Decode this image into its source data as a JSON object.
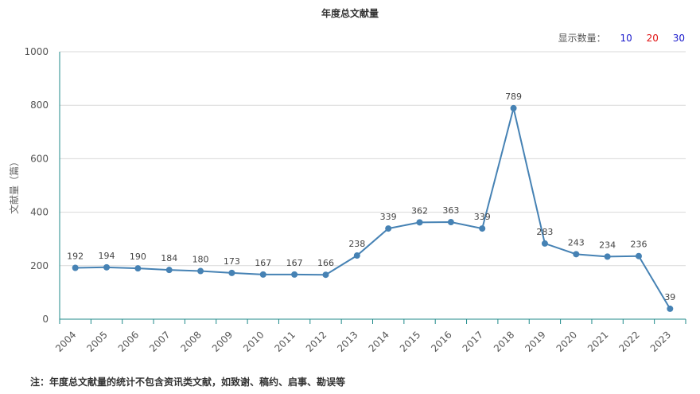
{
  "chart_title": "年度总文献量",
  "display_count": {
    "label": "显示数量：",
    "options": [
      {
        "label": "10",
        "color": "#1a1acc"
      },
      {
        "label": "20",
        "color": "#e01010"
      },
      {
        "label": "30",
        "color": "#1a1acc"
      }
    ]
  },
  "note": "注：年度总文献量的统计不包含资讯类文献，如致谢、稿约、启事、勘误等",
  "chart_data": {
    "type": "line",
    "title": "年度总文献量",
    "xlabel": "",
    "ylabel": "文献量（篇）",
    "ylim": [
      0,
      1000
    ],
    "yticks": [
      0,
      200,
      400,
      600,
      800,
      1000
    ],
    "grid": true,
    "line_color": "#4682b4",
    "categories": [
      "2004",
      "2005",
      "2006",
      "2007",
      "2008",
      "2009",
      "2010",
      "2011",
      "2012",
      "2013",
      "2014",
      "2015",
      "2016",
      "2017",
      "2018",
      "2019",
      "2020",
      "2021",
      "2022",
      "2023"
    ],
    "series": [
      {
        "values": [
          192,
          194,
          190,
          184,
          180,
          173,
          167,
          167,
          166,
          238,
          339,
          362,
          363,
          339,
          789,
          283,
          243,
          234,
          236,
          39
        ]
      }
    ]
  }
}
